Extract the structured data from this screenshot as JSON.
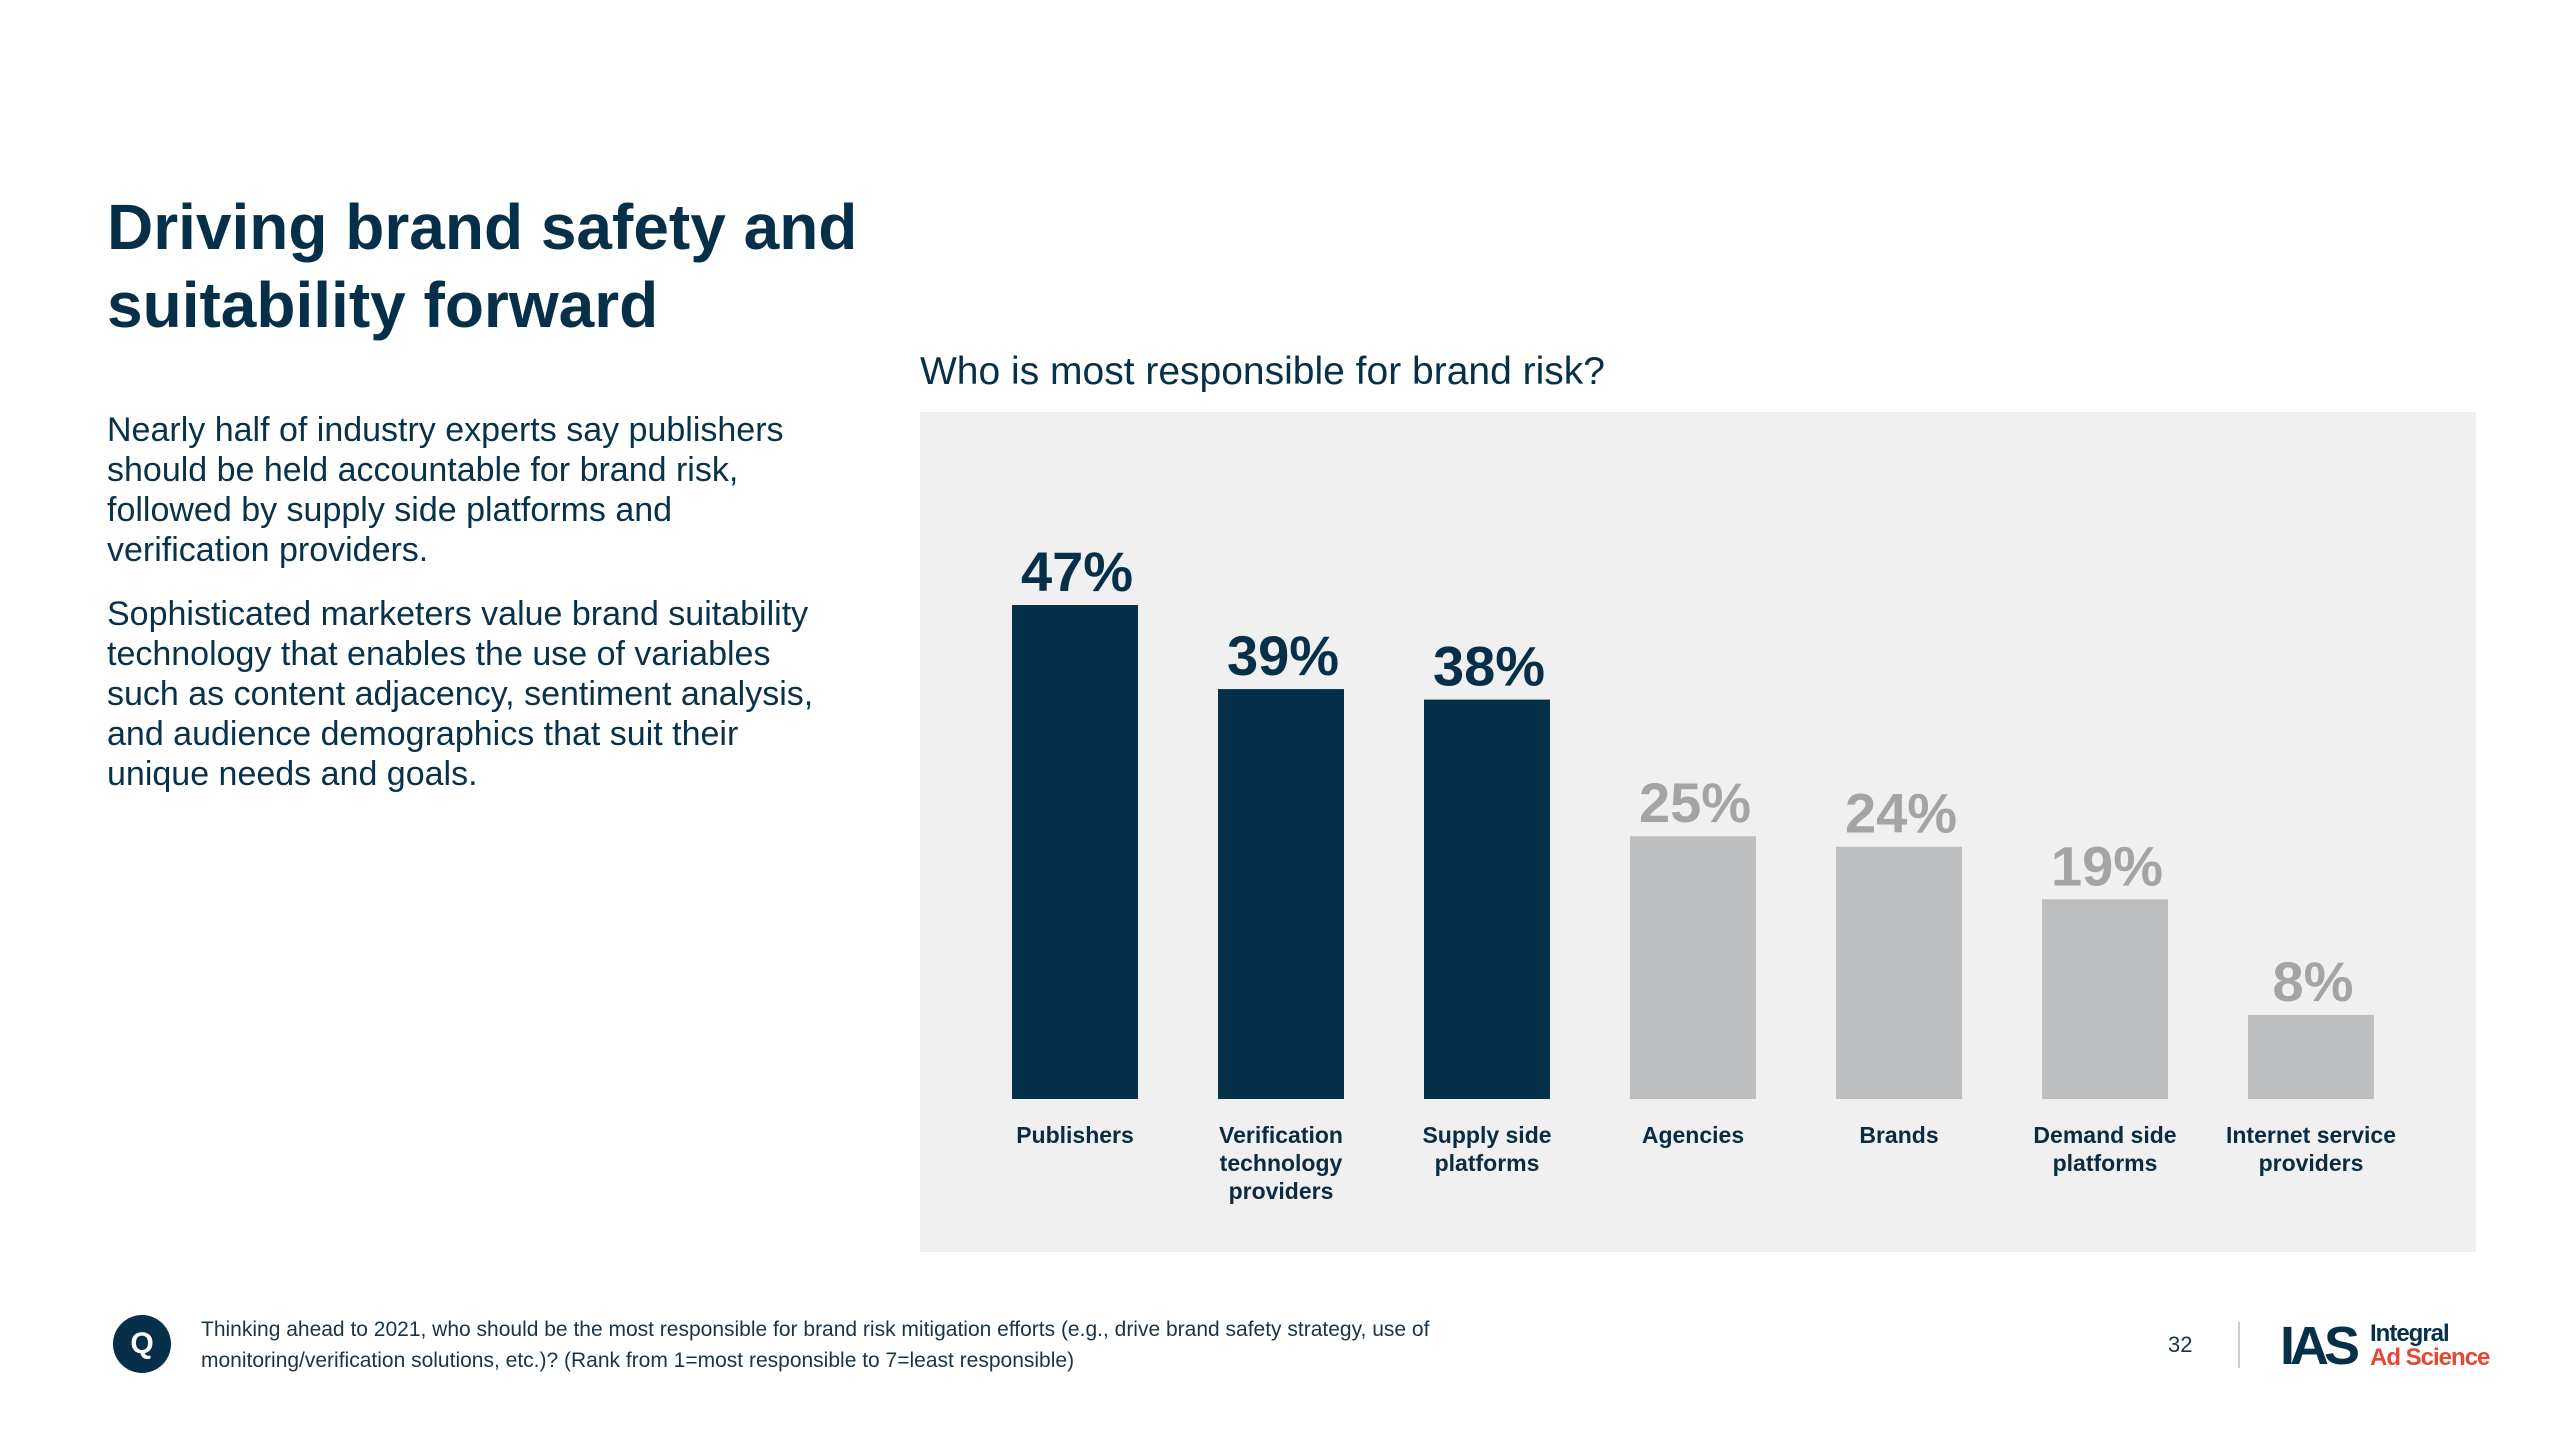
{
  "page": {
    "title": "Driving brand safety and suitability forward",
    "paragraphs": [
      "Nearly half of industry experts say publishers should be held accountable for brand risk, followed by supply side platforms and verification providers.",
      "Sophisticated marketers value brand suitability technology that enables the use of variables such as content adjacency, sentiment analysis, and audience demographics that suit their unique needs and goals."
    ]
  },
  "chart_data": {
    "type": "bar",
    "title": "Who is most responsible for brand risk?",
    "categories": [
      "Publishers",
      "Verification technology providers",
      "Supply side platforms",
      "Agencies",
      "Brands",
      "Demand side platforms",
      "Internet service providers"
    ],
    "values": [
      47,
      39,
      38,
      25,
      24,
      19,
      8
    ],
    "value_labels": [
      "47%",
      "39%",
      "38%",
      "25%",
      "24%",
      "19%",
      "8%"
    ],
    "highlighted": [
      true,
      true,
      true,
      false,
      false,
      false,
      false
    ],
    "unit": "%",
    "ylim": [
      0,
      47
    ],
    "xlabel": "",
    "ylabel": "",
    "grid": false,
    "legend": "none",
    "colors": {
      "highlight": "#043049",
      "muted": "#bdbebf",
      "highlight_label": "#063049",
      "muted_label": "#a3a4a5",
      "category_label": "#0b2b40",
      "panel_bg": "#eff0ef"
    }
  },
  "footer": {
    "q_badge": "Q",
    "question": "Thinking ahead to 2021, who should be the most responsible for brand risk mitigation efforts (e.g., drive brand safety strategy, use of monitoring/verification solutions, etc.)? (Rank from 1=most responsible to 7=least responsible)",
    "page_number": "32",
    "logo": {
      "mark": "IAS",
      "word1": "Integral",
      "word2": "Ad Science"
    }
  }
}
